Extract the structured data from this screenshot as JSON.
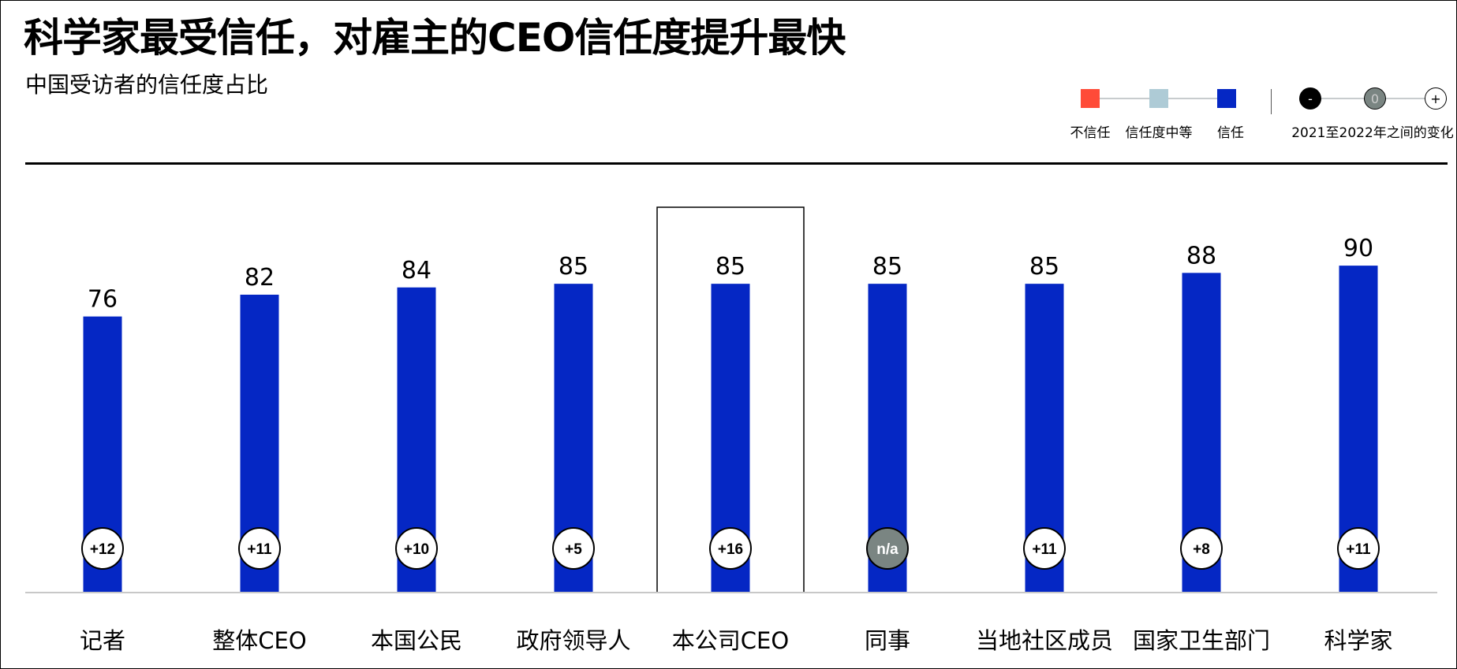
{
  "title": "科学家最受信任，对雇主的CEO信任度提升最快",
  "subtitle": "中国受访者的信任度占比",
  "legend": {
    "trust_levels": [
      {
        "label": "不信任",
        "color": "#ff4b38"
      },
      {
        "label": "信任度中等",
        "color": "#aecbd6"
      },
      {
        "label": "信任",
        "color": "#0527c4"
      }
    ],
    "change_markers": [
      "-",
      "0",
      "+"
    ],
    "change_label": "2021至2022年之间的变化"
  },
  "chart_data": {
    "type": "bar",
    "title": "科学家最受信任，对雇主的CEO信任度提升最快",
    "subtitle": "中国受访者的信任度占比",
    "categories": [
      "记者",
      "整体CEO",
      "本国公民",
      "政府领导人",
      "本公司CEO",
      "同事",
      "当地社区成员",
      "国家卫生部门",
      "科学家"
    ],
    "values": [
      76,
      82,
      84,
      85,
      85,
      85,
      85,
      88,
      90
    ],
    "value_labels": [
      "76",
      "82",
      "84",
      "85",
      "85",
      "85",
      "85",
      "88",
      "90"
    ],
    "changes": [
      "+12",
      "+11",
      "+10",
      "+5",
      "+16",
      "n/a",
      "+11",
      "+8",
      "+11"
    ],
    "highlighted_category": "本公司CEO",
    "series_color": "#0527c4",
    "ylim": [
      0,
      100
    ],
    "xlabel": "",
    "ylabel": "",
    "grid": false
  }
}
